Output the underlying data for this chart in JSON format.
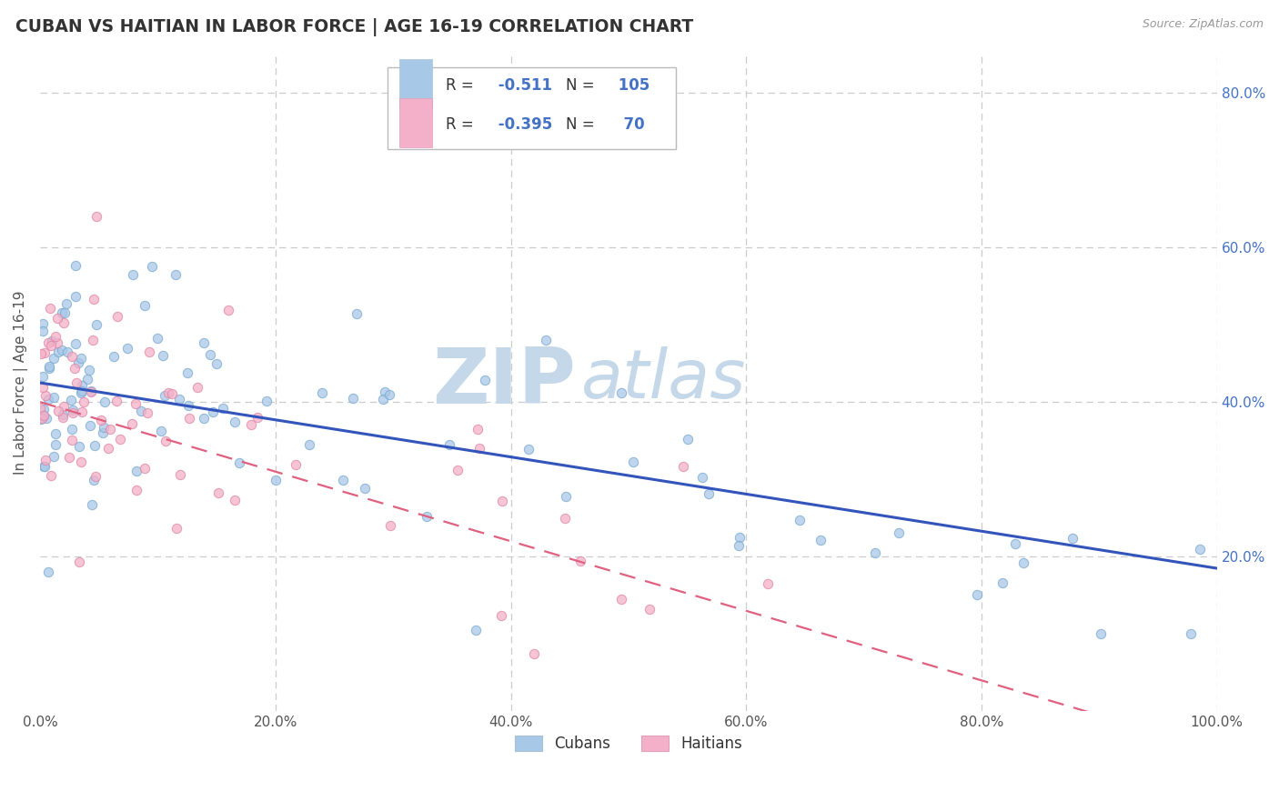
{
  "title": "CUBAN VS HAITIAN IN LABOR FORCE | AGE 16-19 CORRELATION CHART",
  "source_text": "Source: ZipAtlas.com",
  "ylabel": "In Labor Force | Age 16-19",
  "xlim": [
    0.0,
    1.0
  ],
  "ylim": [
    0.0,
    0.85
  ],
  "x_ticks": [
    0.0,
    0.2,
    0.4,
    0.6,
    0.8,
    1.0
  ],
  "x_tick_labels": [
    "0.0%",
    "20.0%",
    "40.0%",
    "60.0%",
    "80.0%",
    "100.0%"
  ],
  "y_ticks": [
    0.2,
    0.4,
    0.6,
    0.8
  ],
  "y_tick_labels": [
    "20.0%",
    "40.0%",
    "60.0%",
    "80.0%"
  ],
  "R_cuban": -0.511,
  "N_cuban": 105,
  "R_haitian": -0.395,
  "N_haitian": 70,
  "cuban_color": "#a8c8e8",
  "haitian_color": "#f4b0c8",
  "cuban_line_color": "#3355bb",
  "haitian_line_color": "#e06080",
  "watermark_zip_color": "#c5d8ea",
  "watermark_atlas_color": "#c5d8ea",
  "title_color": "#333333",
  "grid_color": "#cccccc",
  "legend_text_color": "#333333",
  "legend_value_color": "#4472c4"
}
